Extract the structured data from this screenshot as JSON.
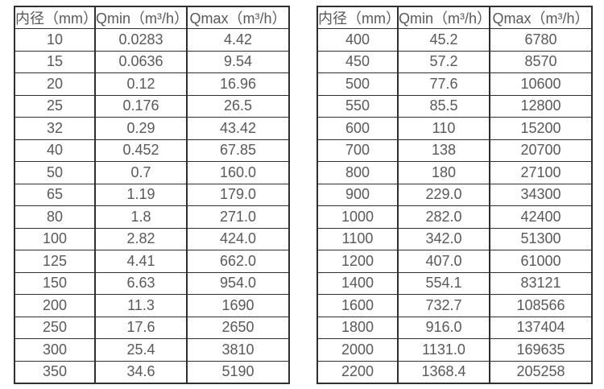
{
  "colors": {
    "border": "#2f2f2f",
    "text": "#595959",
    "background": "#ffffff"
  },
  "tables": [
    {
      "name": "flow-rate-table-small-diameters",
      "headers": [
        "内径（mm）",
        "Qmin（m³/h）",
        "Qmax（m³/h）"
      ],
      "rows": [
        [
          "10",
          "0.0283",
          "4.42"
        ],
        [
          "15",
          "0.0636",
          "9.54"
        ],
        [
          "20",
          "0.12",
          "16.96"
        ],
        [
          "25",
          "0.176",
          "26.5"
        ],
        [
          "32",
          "0.29",
          "43.42"
        ],
        [
          "40",
          "0.452",
          "67.85"
        ],
        [
          "50",
          "0.7",
          "160.0"
        ],
        [
          "65",
          "1.19",
          "179.0"
        ],
        [
          "80",
          "1.8",
          "271.0"
        ],
        [
          "100",
          "2.82",
          "424.0"
        ],
        [
          "125",
          "4.41",
          "662.0"
        ],
        [
          "150",
          "6.63",
          "954.0"
        ],
        [
          "200",
          "11.3",
          "1690"
        ],
        [
          "250",
          "17.6",
          "2650"
        ],
        [
          "300",
          "25.4",
          "3810"
        ],
        [
          "350",
          "34.6",
          "5190"
        ]
      ]
    },
    {
      "name": "flow-rate-table-large-diameters",
      "headers": [
        "内径（mm）",
        "Qmin（m³/h）",
        "Qmax（m³/h）"
      ],
      "rows": [
        [
          "400",
          "45.2",
          "6780"
        ],
        [
          "450",
          "57.2",
          "8570"
        ],
        [
          "500",
          "77.6",
          "10600"
        ],
        [
          "550",
          "85.5",
          "12800"
        ],
        [
          "600",
          "110",
          "15200"
        ],
        [
          "700",
          "138",
          "20700"
        ],
        [
          "800",
          "180",
          "27100"
        ],
        [
          "900",
          "229.0",
          "34300"
        ],
        [
          "1000",
          "282.0",
          "42400"
        ],
        [
          "1100",
          "342.0",
          "51300"
        ],
        [
          "1200",
          "407.0",
          "61000"
        ],
        [
          "1400",
          "554.1",
          "83121"
        ],
        [
          "1600",
          "732.7",
          "108566"
        ],
        [
          "1800",
          "916.0",
          "137404"
        ],
        [
          "2000",
          "1131.0",
          "169635"
        ],
        [
          "2200",
          "1368.4",
          "205258"
        ]
      ]
    }
  ]
}
